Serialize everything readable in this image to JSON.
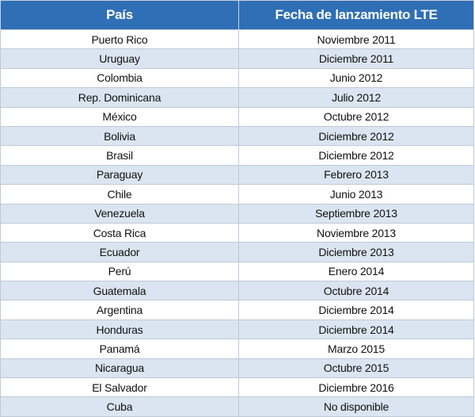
{
  "table": {
    "header": [
      "País",
      "Fecha de lanzamiento LTE"
    ],
    "rows": [
      [
        "Puerto Rico",
        "Noviembre 2011"
      ],
      [
        "Uruguay",
        "Diciembre 2011"
      ],
      [
        "Colombia",
        "Junio 2012"
      ],
      [
        "Rep. Dominicana",
        "Julio 2012"
      ],
      [
        "México",
        "Octubre 2012"
      ],
      [
        "Bolivia",
        "Diciembre 2012"
      ],
      [
        "Brasil",
        "Diciembre 2012"
      ],
      [
        "Paraguay",
        "Febrero 2013"
      ],
      [
        "Chile",
        "Junio 2013"
      ],
      [
        "Venezuela",
        "Septiembre 2013"
      ],
      [
        "Costa Rica",
        "Noviembre 2013"
      ],
      [
        "Ecuador",
        "Diciembre 2013"
      ],
      [
        "Perú",
        "Enero 2014"
      ],
      [
        "Guatemala",
        "Octubre 2014"
      ],
      [
        "Argentina",
        "Diciembre 2014"
      ],
      [
        "Honduras",
        "Diciembre 2014"
      ],
      [
        "Panamá",
        "Marzo 2015"
      ],
      [
        "Nicaragua",
        "Octubre 2015"
      ],
      [
        "El Salvador",
        "Diciembre 2016"
      ],
      [
        "Cuba",
        "No disponible"
      ]
    ]
  }
}
